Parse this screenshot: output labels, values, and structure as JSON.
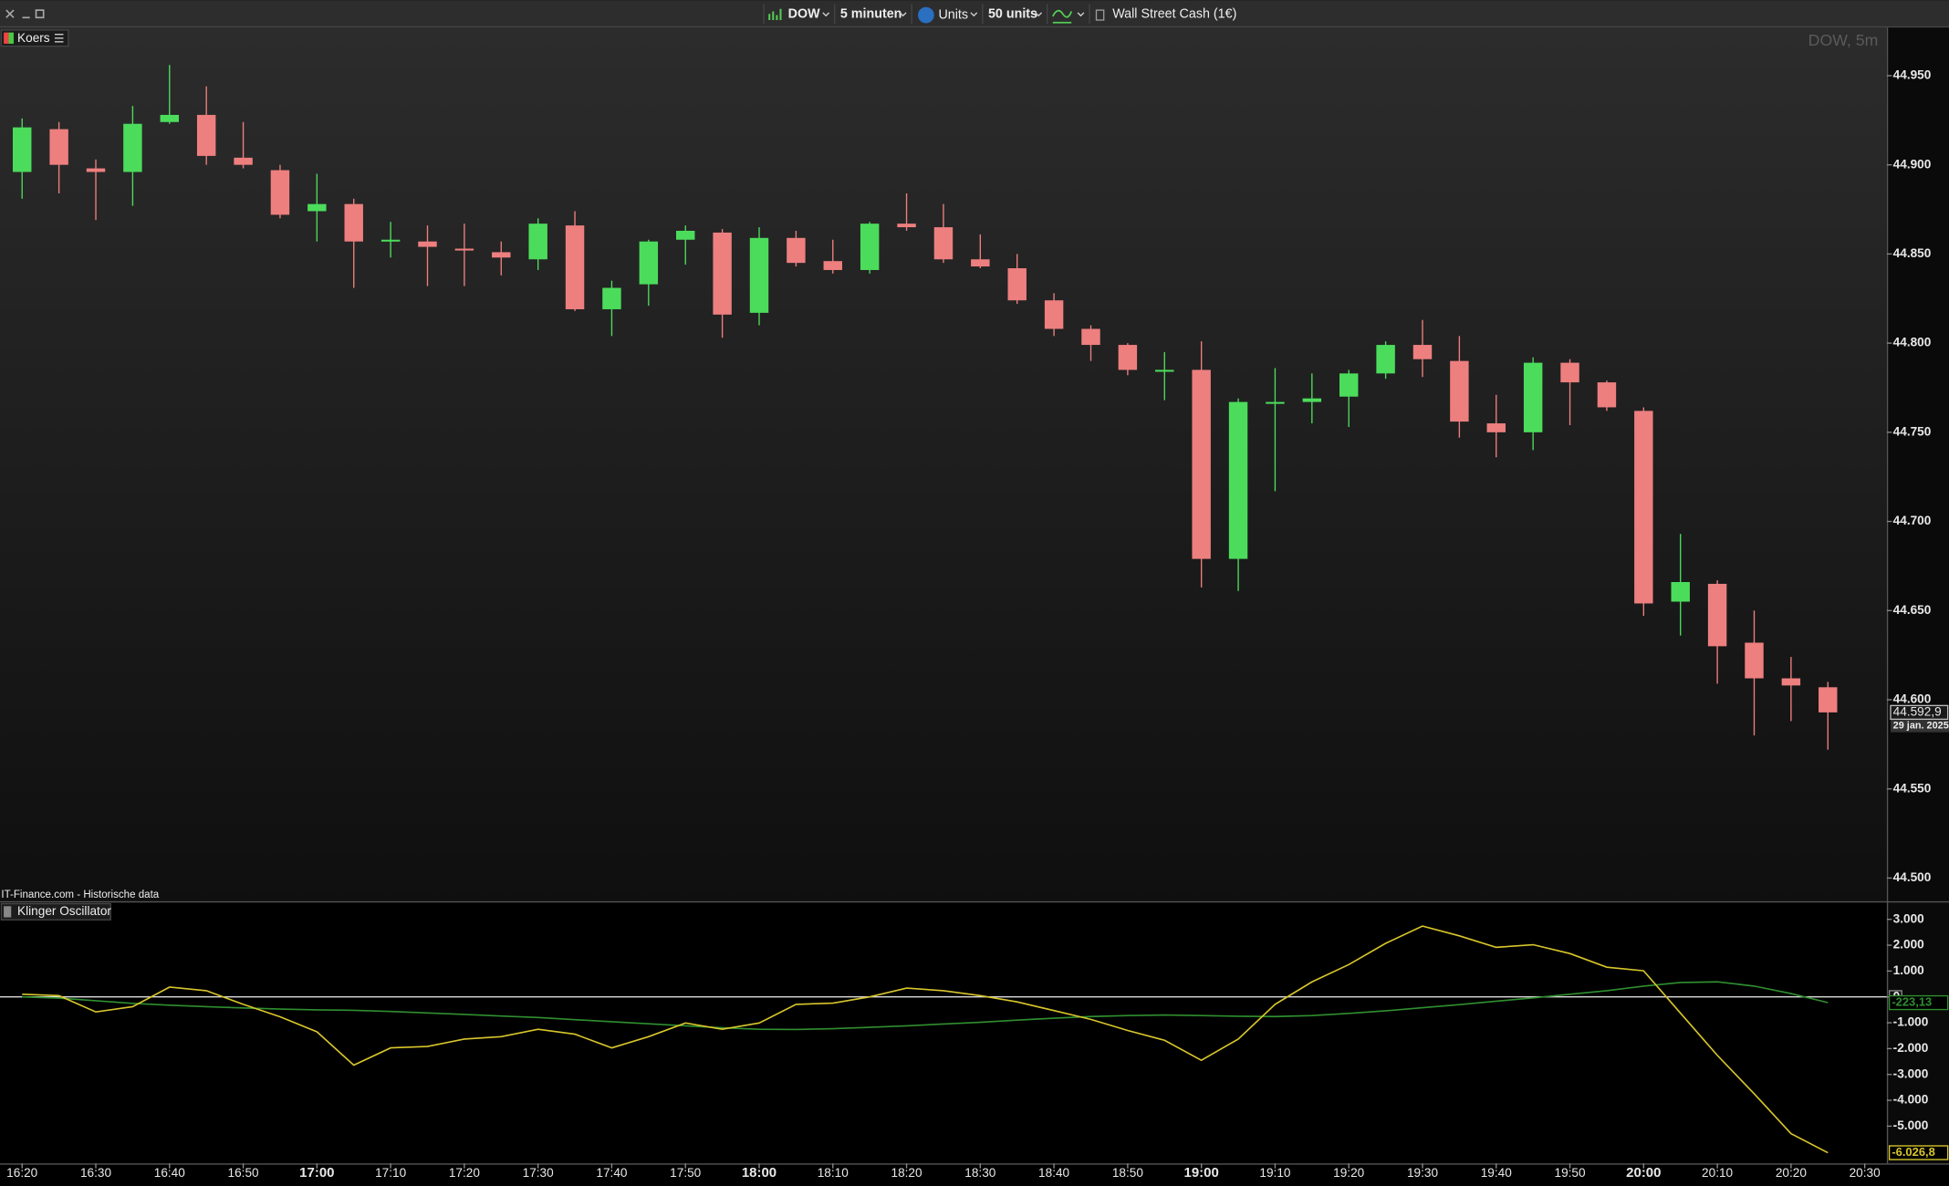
{
  "toolbar": {
    "instrument": "DOW",
    "interval": "5 minuten",
    "units_mode": "Units",
    "units": "50 units",
    "product": "Wall Street Cash (1€)"
  },
  "chart_data": [
    {
      "type": "candlestick",
      "title": "Koers",
      "watermark": "DOW, 5m",
      "source": "IT-Finance.com - Historische data",
      "up_color": "#4cdc5c",
      "down_color": "#ee7f7f",
      "x": [
        "16:20",
        "16:25",
        "16:30",
        "16:35",
        "16:40",
        "16:45",
        "16:50",
        "16:55",
        "17:00",
        "17:05",
        "17:10",
        "17:15",
        "17:20",
        "17:25",
        "17:30",
        "17:35",
        "17:40",
        "17:45",
        "17:50",
        "17:55",
        "18:00",
        "18:05",
        "18:10",
        "18:15",
        "18:20",
        "18:25",
        "18:30",
        "18:35",
        "18:40",
        "18:45",
        "18:50",
        "18:55",
        "19:00",
        "19:05",
        "19:10",
        "19:15",
        "19:20",
        "19:25",
        "19:30",
        "19:35",
        "19:40",
        "19:45",
        "19:50",
        "19:55",
        "20:00",
        "20:05",
        "20:10",
        "20:15",
        "20:20",
        "20:25"
      ],
      "open": [
        44.896,
        44.92,
        44.898,
        44.896,
        44.924,
        44.928,
        44.904,
        44.897,
        44.874,
        44.878,
        44.858,
        44.857,
        44.853,
        44.851,
        44.847,
        44.866,
        44.819,
        44.833,
        44.858,
        44.862,
        44.817,
        44.859,
        44.846,
        44.841,
        44.867,
        44.865,
        44.847,
        44.842,
        44.824,
        44.808,
        44.799,
        44.785,
        44.785,
        44.679,
        44.767,
        44.767,
        44.77,
        44.783,
        44.799,
        44.79,
        44.755,
        44.75,
        44.789,
        44.778,
        44.762,
        44.655,
        44.665,
        44.632,
        44.612,
        44.607
      ],
      "high": [
        44.926,
        44.924,
        44.903,
        44.933,
        44.956,
        44.944,
        44.924,
        44.9,
        44.895,
        44.881,
        44.868,
        44.866,
        44.867,
        44.857,
        44.87,
        44.874,
        44.835,
        44.858,
        44.866,
        44.864,
        44.865,
        44.863,
        44.858,
        44.868,
        44.884,
        44.878,
        44.861,
        44.85,
        44.828,
        44.81,
        44.8,
        44.795,
        44.801,
        44.769,
        44.786,
        44.783,
        44.785,
        44.801,
        44.813,
        44.804,
        44.771,
        44.792,
        44.791,
        44.779,
        44.764,
        44.693,
        44.667,
        44.65,
        44.624,
        44.61
      ],
      "low": [
        44.881,
        44.884,
        44.869,
        44.877,
        44.923,
        44.9,
        44.898,
        44.87,
        44.857,
        44.831,
        44.848,
        44.832,
        44.832,
        44.838,
        44.841,
        44.818,
        44.804,
        44.821,
        44.844,
        44.803,
        44.81,
        44.843,
        44.839,
        44.839,
        44.863,
        44.845,
        44.842,
        44.822,
        44.804,
        44.79,
        44.782,
        44.768,
        44.663,
        44.661,
        44.717,
        44.755,
        44.753,
        44.78,
        44.781,
        44.747,
        44.736,
        44.74,
        44.754,
        44.762,
        44.647,
        44.636,
        44.609,
        44.58,
        44.588,
        44.572
      ],
      "close": [
        44.921,
        44.9,
        44.896,
        44.923,
        44.928,
        44.905,
        44.9,
        44.872,
        44.878,
        44.857,
        44.858,
        44.854,
        44.852,
        44.848,
        44.867,
        44.819,
        44.831,
        44.857,
        44.863,
        44.816,
        44.859,
        44.845,
        44.841,
        44.867,
        44.865,
        44.847,
        44.843,
        44.824,
        44.808,
        44.799,
        44.785,
        44.785,
        44.679,
        44.767,
        44.767,
        44.769,
        44.783,
        44.799,
        44.791,
        44.756,
        44.75,
        44.789,
        44.778,
        44.764,
        44.654,
        44.666,
        44.63,
        44.612,
        44.608,
        44.5929
      ],
      "last_price": {
        "value": 44.5929,
        "label": "44.592,9"
      },
      "last_date": "29 jan. 2025",
      "xlim": [
        "16:17",
        "20:33"
      ],
      "ylim": [
        44.487,
        44.977
      ],
      "yticks": [
        {
          "value": 44.5,
          "label": "44.500"
        },
        {
          "value": 44.55,
          "label": "44.550"
        },
        {
          "value": 44.6,
          "label": "44.600"
        },
        {
          "value": 44.65,
          "label": "44.650"
        },
        {
          "value": 44.7,
          "label": "44.700"
        },
        {
          "value": 44.75,
          "label": "44.750"
        },
        {
          "value": 44.8,
          "label": "44.800"
        },
        {
          "value": 44.85,
          "label": "44.850"
        },
        {
          "value": 44.9,
          "label": "44.900"
        },
        {
          "value": 44.95,
          "label": "44.950"
        }
      ]
    },
    {
      "type": "line",
      "title": "Klinger Oscillator",
      "x": [
        "16:20",
        "16:25",
        "16:30",
        "16:35",
        "16:40",
        "16:45",
        "16:50",
        "16:55",
        "17:00",
        "17:05",
        "17:10",
        "17:15",
        "17:20",
        "17:25",
        "17:30",
        "17:35",
        "17:40",
        "17:45",
        "17:50",
        "17:55",
        "18:00",
        "18:05",
        "18:10",
        "18:15",
        "18:20",
        "18:25",
        "18:30",
        "18:35",
        "18:40",
        "18:45",
        "18:50",
        "18:55",
        "19:00",
        "19:05",
        "19:10",
        "19:15",
        "19:20",
        "19:25",
        "19:30",
        "19:35",
        "19:40",
        "19:45",
        "19:50",
        "19:55",
        "20:00",
        "20:05",
        "20:10",
        "20:15",
        "20:20",
        "20:25"
      ],
      "series": [
        {
          "color": "#d8c62c",
          "last_label": "-6.026,8",
          "values": [
            100,
            50,
            -580,
            -380,
            380,
            240,
            -290,
            -770,
            -1350,
            -2640,
            -1970,
            -1920,
            -1630,
            -1540,
            -1250,
            -1440,
            -1970,
            -1540,
            -1010,
            -1250,
            -1010,
            -290,
            -240,
            0,
            340,
            240,
            50,
            -190,
            -530,
            -870,
            -1300,
            -1680,
            -2450,
            -1630,
            -290,
            580,
            1250,
            2070,
            2740,
            2360,
            1920,
            2020,
            1680,
            1150,
            1010,
            -630,
            -2260,
            -3750,
            -5290,
            -6026.8
          ]
        },
        {
          "color": "#2f8f2f",
          "last_label": "-223,13",
          "values": [
            0,
            -50,
            -150,
            -250,
            -320,
            -380,
            -430,
            -470,
            -500,
            -520,
            -560,
            -620,
            -680,
            -740,
            -800,
            -880,
            -960,
            -1040,
            -1120,
            -1190,
            -1250,
            -1260,
            -1230,
            -1180,
            -1120,
            -1050,
            -980,
            -900,
            -820,
            -760,
            -720,
            -700,
            -720,
            -750,
            -760,
            -720,
            -640,
            -540,
            -420,
            -300,
            -170,
            -40,
            100,
            240,
            420,
            560,
            580,
            420,
            130,
            -223.13
          ]
        }
      ],
      "zero_line": true,
      "xlim": [
        "16:17",
        "20:33"
      ],
      "xticks": [
        "16:20",
        "16:30",
        "16:40",
        "16:50",
        "17:00",
        "17:10",
        "17:20",
        "17:30",
        "17:40",
        "17:50",
        "18:00",
        "18:10",
        "18:20",
        "18:30",
        "18:40",
        "18:50",
        "19:00",
        "19:10",
        "19:20",
        "19:30",
        "19:40",
        "19:50",
        "20:00",
        "20:10",
        "20:20",
        "20:30"
      ],
      "ylim": [
        -6394,
        3654
      ],
      "yticks": [
        {
          "value": 3000,
          "label": "3.000"
        },
        {
          "value": 2000,
          "label": "2.000"
        },
        {
          "value": 1000,
          "label": "1.000"
        },
        0,
        {
          "value": -1000,
          "label": "-1.000"
        },
        {
          "value": -2000,
          "label": "-2.000"
        },
        {
          "value": -3000,
          "label": "-3.000"
        },
        {
          "value": -4000,
          "label": "-4.000"
        },
        {
          "value": -5000,
          "label": "-5.000"
        }
      ]
    }
  ]
}
